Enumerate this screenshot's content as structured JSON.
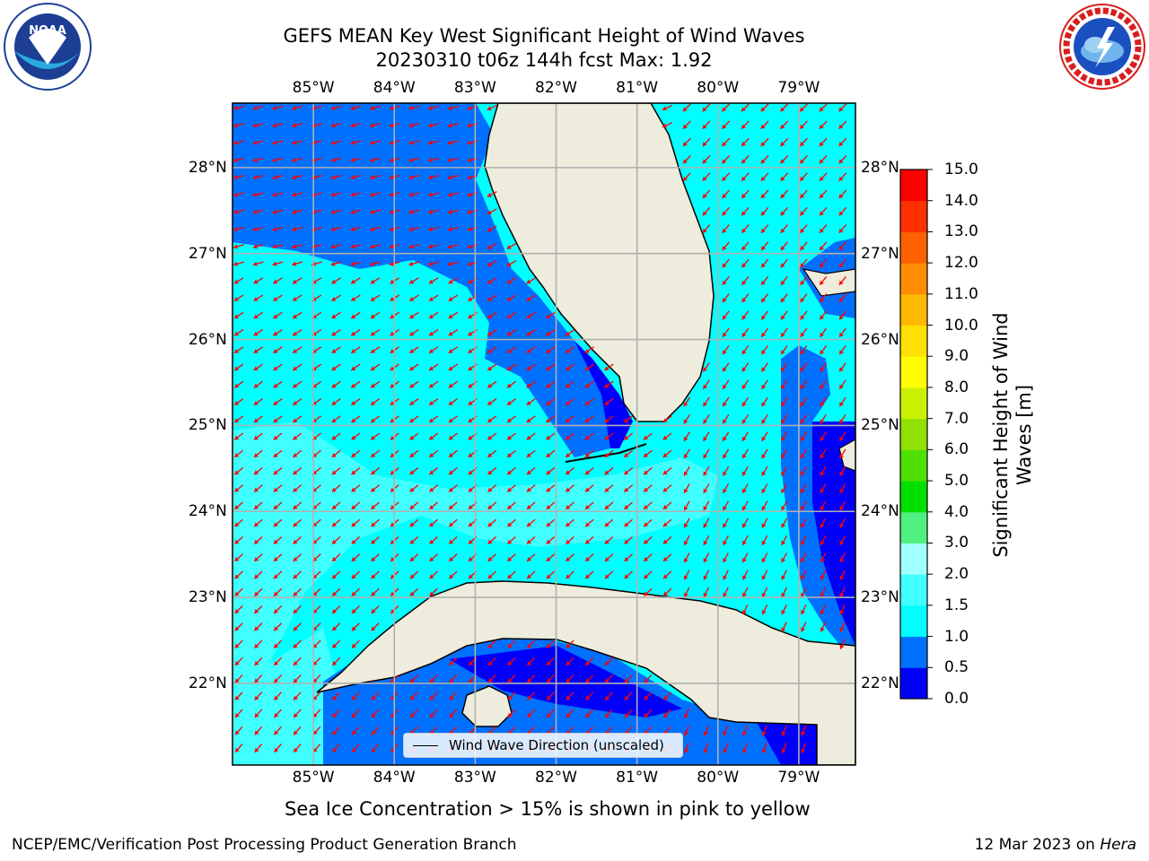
{
  "header": {
    "title_line1": "GEFS MEAN Key West Significant Height of Wind Waves",
    "title_line2": "20230310 t06z 144h fcst   Max: 1.92"
  },
  "logos": {
    "left": {
      "name": "noaa-logo",
      "text": "NOAA",
      "ring_text": "NATIONAL OCEANIC AND ATMOSPHERIC ADMINISTRATION · U.S. DEPARTMENT OF COMMERCE"
    },
    "right": {
      "name": "nws-logo",
      "ring_text": "NATIONAL WEATHER SERVICE"
    }
  },
  "map": {
    "lon_labels": [
      "85°W",
      "84°W",
      "83°W",
      "82°W",
      "81°W",
      "80°W",
      "79°W"
    ],
    "lat_labels": [
      "28°N",
      "27°N",
      "26°N",
      "25°N",
      "24°N",
      "23°N",
      "22°N"
    ],
    "lon_range": [
      -86,
      -78.3
    ],
    "lat_range": [
      21.05,
      28.75
    ],
    "legend_label": "Wind Wave Direction (unscaled)",
    "wave_direction_deg": "toward southwest",
    "arrow_color": "#ff0000",
    "land_color": "#eeecdc",
    "grid": true
  },
  "colorbar": {
    "title_line1": "Significant Height of Wind",
    "title_line2": "Waves [m]",
    "ticks": [
      "0.0",
      "0.5",
      "1.0",
      "1.5",
      "2.0",
      "3.0",
      "4.0",
      "5.0",
      "6.0",
      "7.0",
      "8.0",
      "9.0",
      "10.0",
      "11.0",
      "12.0",
      "13.0",
      "14.0",
      "15.0"
    ],
    "colors": [
      "#0000f8",
      "#0070ff",
      "#00ffff",
      "#40ffff",
      "#a0ffff",
      "#50f080",
      "#00e000",
      "#50e000",
      "#90e000",
      "#c8f000",
      "#ffff00",
      "#ffe000",
      "#ffb800",
      "#ff8c00",
      "#ff6000",
      "#ff3000",
      "#ff0000"
    ]
  },
  "notes": {
    "ice": "Sea Ice Concentration > 15% is shown in pink to yellow"
  },
  "footer": {
    "left": "NCEP/EMC/Verification Post Processing Product Generation Branch",
    "right_date": "12 Mar 2023 on ",
    "right_host": "Hera"
  }
}
